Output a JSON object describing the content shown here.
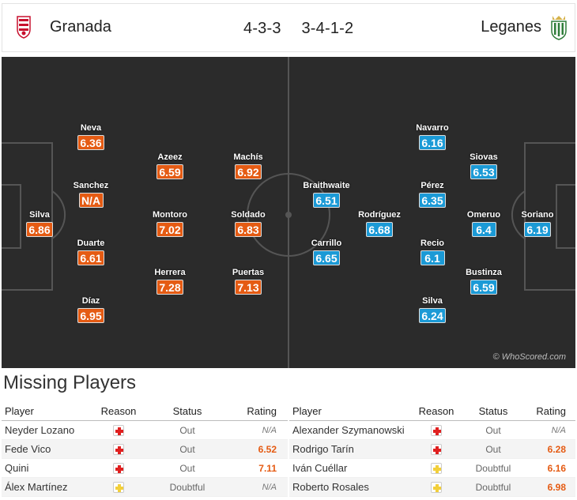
{
  "header": {
    "home_team": "Granada",
    "away_team": "Leganes",
    "home_formation": "4-3-3",
    "away_formation": "3-4-1-2",
    "home_crest_icon": "granada-crest-icon",
    "away_crest_icon": "leganes-crest-icon"
  },
  "pitch": {
    "watermark": "© WhoScored.com",
    "home_color": "#e55b13",
    "away_color": "#1b9ad6",
    "home_players": [
      {
        "name": "Neva",
        "rating": "6.36"
      },
      {
        "name": "Sanchez",
        "rating": "N/A"
      },
      {
        "name": "Silva",
        "rating": "6.86"
      },
      {
        "name": "Duarte",
        "rating": "6.61"
      },
      {
        "name": "Díaz",
        "rating": "6.95"
      },
      {
        "name": "Azeez",
        "rating": "6.59"
      },
      {
        "name": "Montoro",
        "rating": "7.02"
      },
      {
        "name": "Herrera",
        "rating": "7.28"
      },
      {
        "name": "Machís",
        "rating": "6.92"
      },
      {
        "name": "Soldado",
        "rating": "6.83"
      },
      {
        "name": "Puertas",
        "rating": "7.13"
      }
    ],
    "away_players": [
      {
        "name": "Braithwaite",
        "rating": "6.51"
      },
      {
        "name": "Rodríguez",
        "rating": "6.68"
      },
      {
        "name": "Carrillo",
        "rating": "6.65"
      },
      {
        "name": "Navarro",
        "rating": "6.16"
      },
      {
        "name": "Pérez",
        "rating": "6.35"
      },
      {
        "name": "Recio",
        "rating": "6.1"
      },
      {
        "name": "Silva",
        "rating": "6.24"
      },
      {
        "name": "Siovas",
        "rating": "6.53"
      },
      {
        "name": "Omeruo",
        "rating": "6.4"
      },
      {
        "name": "Bustinza",
        "rating": "6.59"
      },
      {
        "name": "Soriano",
        "rating": "6.19"
      }
    ]
  },
  "missing": {
    "title": "Missing Players",
    "columns": {
      "player": "Player",
      "reason": "Reason",
      "status": "Status",
      "rating": "Rating"
    },
    "home": [
      {
        "player": "Neyder Lozano",
        "reason": "injury",
        "status": "Out",
        "rating": "N/A"
      },
      {
        "player": "Fede Vico",
        "reason": "injury",
        "status": "Out",
        "rating": "6.52"
      },
      {
        "player": "Quini",
        "reason": "injury",
        "status": "Out",
        "rating": "7.11"
      },
      {
        "player": "Álex Martínez",
        "reason": "doubtful",
        "status": "Doubtful",
        "rating": "N/A"
      }
    ],
    "away": [
      {
        "player": "Alexander Szymanowski",
        "reason": "injury",
        "status": "Out",
        "rating": "N/A"
      },
      {
        "player": "Rodrigo Tarín",
        "reason": "injury",
        "status": "Out",
        "rating": "6.28"
      },
      {
        "player": "Iván Cuéllar",
        "reason": "doubtful",
        "status": "Doubtful",
        "rating": "6.16"
      },
      {
        "player": "Roberto Rosales",
        "reason": "doubtful",
        "status": "Doubtful",
        "rating": "6.98"
      }
    ]
  }
}
